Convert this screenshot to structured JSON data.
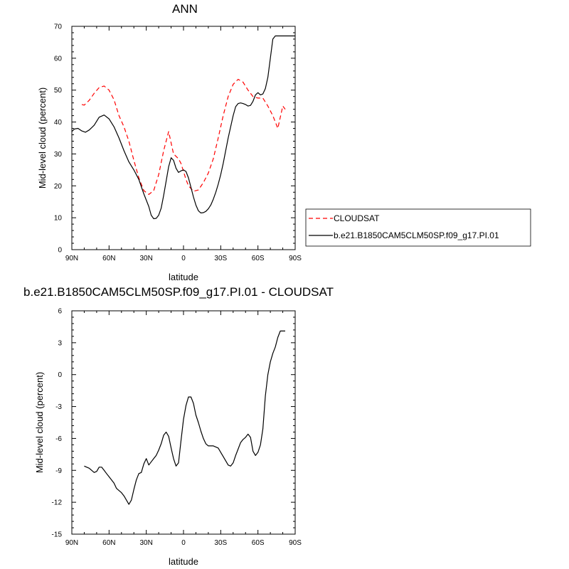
{
  "chart_data": [
    {
      "type": "line",
      "title": "ANN",
      "xlabel": "latitude",
      "ylabel": "Mid-level cloud (percent)",
      "xlim": [
        -90,
        90
      ],
      "ylim": [
        0,
        70
      ],
      "x_ticks": [
        -90,
        -60,
        -30,
        0,
        30,
        60,
        90
      ],
      "x_tick_labels": [
        "90N",
        "60N",
        "30N",
        "0",
        "30S",
        "60S",
        "90S"
      ],
      "y_ticks": [
        0,
        10,
        20,
        30,
        40,
        50,
        60,
        70
      ],
      "y_tick_labels": [
        "0",
        "10",
        "20",
        "30",
        "40",
        "50",
        "60",
        "70"
      ],
      "legend": {
        "placement": "right",
        "entries": [
          "CLOUDSAT",
          "b.e21.B1850CAM5CLM50SP.f09_g17.PI.01"
        ]
      },
      "series": [
        {
          "name": "CLOUDSAT",
          "color": "#ff0000",
          "dash": true,
          "x": [
            -82,
            -80,
            -76,
            -72,
            -68,
            -64,
            -60,
            -56,
            -52,
            -48,
            -44,
            -40,
            -36,
            -32,
            -28,
            -24,
            -20,
            -16,
            -12,
            -8,
            -4,
            -2,
            0,
            2,
            4,
            8,
            12,
            16,
            20,
            24,
            28,
            32,
            36,
            40,
            44,
            48,
            52,
            56,
            60,
            64,
            68,
            72,
            76,
            80,
            82
          ],
          "y": [
            45.5,
            45.3,
            46.8,
            49,
            50.8,
            51.3,
            50,
            47,
            42,
            38.5,
            34,
            28,
            22.5,
            18.5,
            17.3,
            18.5,
            23.5,
            31,
            37,
            30,
            28.5,
            27,
            24.5,
            22,
            20,
            18.3,
            18.7,
            21,
            24,
            28.5,
            35,
            42,
            48,
            51.8,
            53.4,
            52.5,
            50,
            48,
            47.5,
            47.5,
            45,
            42,
            38,
            45,
            44
          ]
        },
        {
          "name": "b.e21.B1850CAM5CLM50SP.f09_g17.PI.01",
          "color": "#000000",
          "dash": false,
          "x": [
            -90,
            -88,
            -85,
            -82,
            -79,
            -76,
            -72,
            -68,
            -64,
            -60,
            -56,
            -52,
            -48,
            -44,
            -40,
            -36,
            -32,
            -28,
            -26,
            -24,
            -22,
            -20,
            -18,
            -16,
            -14,
            -12,
            -10,
            -8,
            -6,
            -4,
            -2,
            0,
            2,
            4,
            6,
            8,
            10,
            12,
            14,
            16,
            18,
            20,
            22,
            24,
            26,
            28,
            30,
            32,
            34,
            36,
            38,
            40,
            42,
            44,
            46,
            48,
            50,
            52,
            54,
            56,
            58,
            60,
            62,
            64,
            66,
            68,
            70,
            72,
            74,
            76,
            78,
            80,
            82,
            84,
            86,
            88,
            90
          ],
          "y": [
            37,
            37.8,
            38,
            37.2,
            36.8,
            37.5,
            39,
            41.5,
            42.2,
            41,
            38.5,
            35,
            31,
            27.5,
            25,
            22,
            17.5,
            13.5,
            10.8,
            9.7,
            9.8,
            10.8,
            13,
            17,
            21.5,
            26,
            28.8,
            28,
            25.5,
            24.2,
            24.7,
            25,
            24.5,
            22.5,
            19.5,
            16.5,
            14,
            12.2,
            11.5,
            11.6,
            12,
            12.8,
            14,
            15.8,
            18,
            20.5,
            23.5,
            27,
            31,
            35,
            38.5,
            42,
            44.8,
            45.8,
            46,
            45.8,
            45.5,
            45,
            45.2,
            46.5,
            48.5,
            49.2,
            48.5,
            48.8,
            50.5,
            54,
            60,
            66,
            67,
            67,
            67,
            67,
            67,
            67,
            67,
            67,
            67
          ]
        }
      ]
    },
    {
      "type": "line",
      "title": "b.e21.B1850CAM5CLM50SP.f09_g17.PI.01 - CLOUDSAT",
      "xlabel": "latitude",
      "ylabel": "Mid-level cloud (percent)",
      "xlim": [
        -90,
        90
      ],
      "ylim": [
        -15,
        6
      ],
      "x_ticks": [
        -90,
        -60,
        -30,
        0,
        30,
        60,
        90
      ],
      "x_tick_labels": [
        "90N",
        "60N",
        "30N",
        "0",
        "30S",
        "60S",
        "90S"
      ],
      "y_ticks": [
        -15,
        -12,
        -9,
        -6,
        -3,
        0,
        3,
        6
      ],
      "y_tick_labels": [
        "-15",
        "-12",
        "-9",
        "-6",
        "-3",
        "0",
        "3",
        "6"
      ],
      "series": [
        {
          "color": "#000000",
          "dash": false,
          "x": [
            -80,
            -76,
            -74,
            -72,
            -70,
            -68,
            -66,
            -64,
            -62,
            -60,
            -58,
            -56,
            -54,
            -52,
            -50,
            -48,
            -46,
            -44,
            -42,
            -40,
            -38,
            -36,
            -34,
            -32,
            -30,
            -28,
            -26,
            -24,
            -22,
            -20,
            -18,
            -16,
            -14,
            -12,
            -10,
            -8,
            -6,
            -4,
            -2,
            0,
            2,
            4,
            6,
            8,
            10,
            12,
            14,
            16,
            18,
            20,
            22,
            24,
            26,
            28,
            30,
            32,
            34,
            36,
            38,
            40,
            42,
            44,
            46,
            48,
            50,
            52,
            54,
            56,
            58,
            60,
            62,
            64,
            66,
            68,
            70,
            72,
            74,
            76,
            78,
            80,
            82
          ],
          "y": [
            -8.6,
            -8.8,
            -9.0,
            -9.2,
            -9.1,
            -8.7,
            -8.7,
            -9.0,
            -9.3,
            -9.6,
            -9.9,
            -10.2,
            -10.7,
            -10.9,
            -11.1,
            -11.4,
            -11.8,
            -12.2,
            -11.8,
            -10.8,
            -9.9,
            -9.3,
            -9.2,
            -8.4,
            -7.9,
            -8.5,
            -8.2,
            -7.9,
            -7.6,
            -7.1,
            -6.5,
            -5.7,
            -5.4,
            -5.8,
            -6.9,
            -7.9,
            -8.6,
            -8.3,
            -6.2,
            -4.2,
            -2.9,
            -2.1,
            -2.1,
            -2.7,
            -3.8,
            -4.5,
            -5.3,
            -6.0,
            -6.5,
            -6.7,
            -6.7,
            -6.7,
            -6.8,
            -6.9,
            -7.3,
            -7.7,
            -8.1,
            -8.5,
            -8.6,
            -8.3,
            -7.6,
            -7.0,
            -6.4,
            -6.1,
            -5.9,
            -5.6,
            -5.9,
            -7.2,
            -7.6,
            -7.3,
            -6.6,
            -5.1,
            -2.0,
            0.0,
            1.2,
            2.0,
            2.6,
            3.5,
            4.1,
            4.1,
            4.1
          ]
        }
      ]
    }
  ]
}
